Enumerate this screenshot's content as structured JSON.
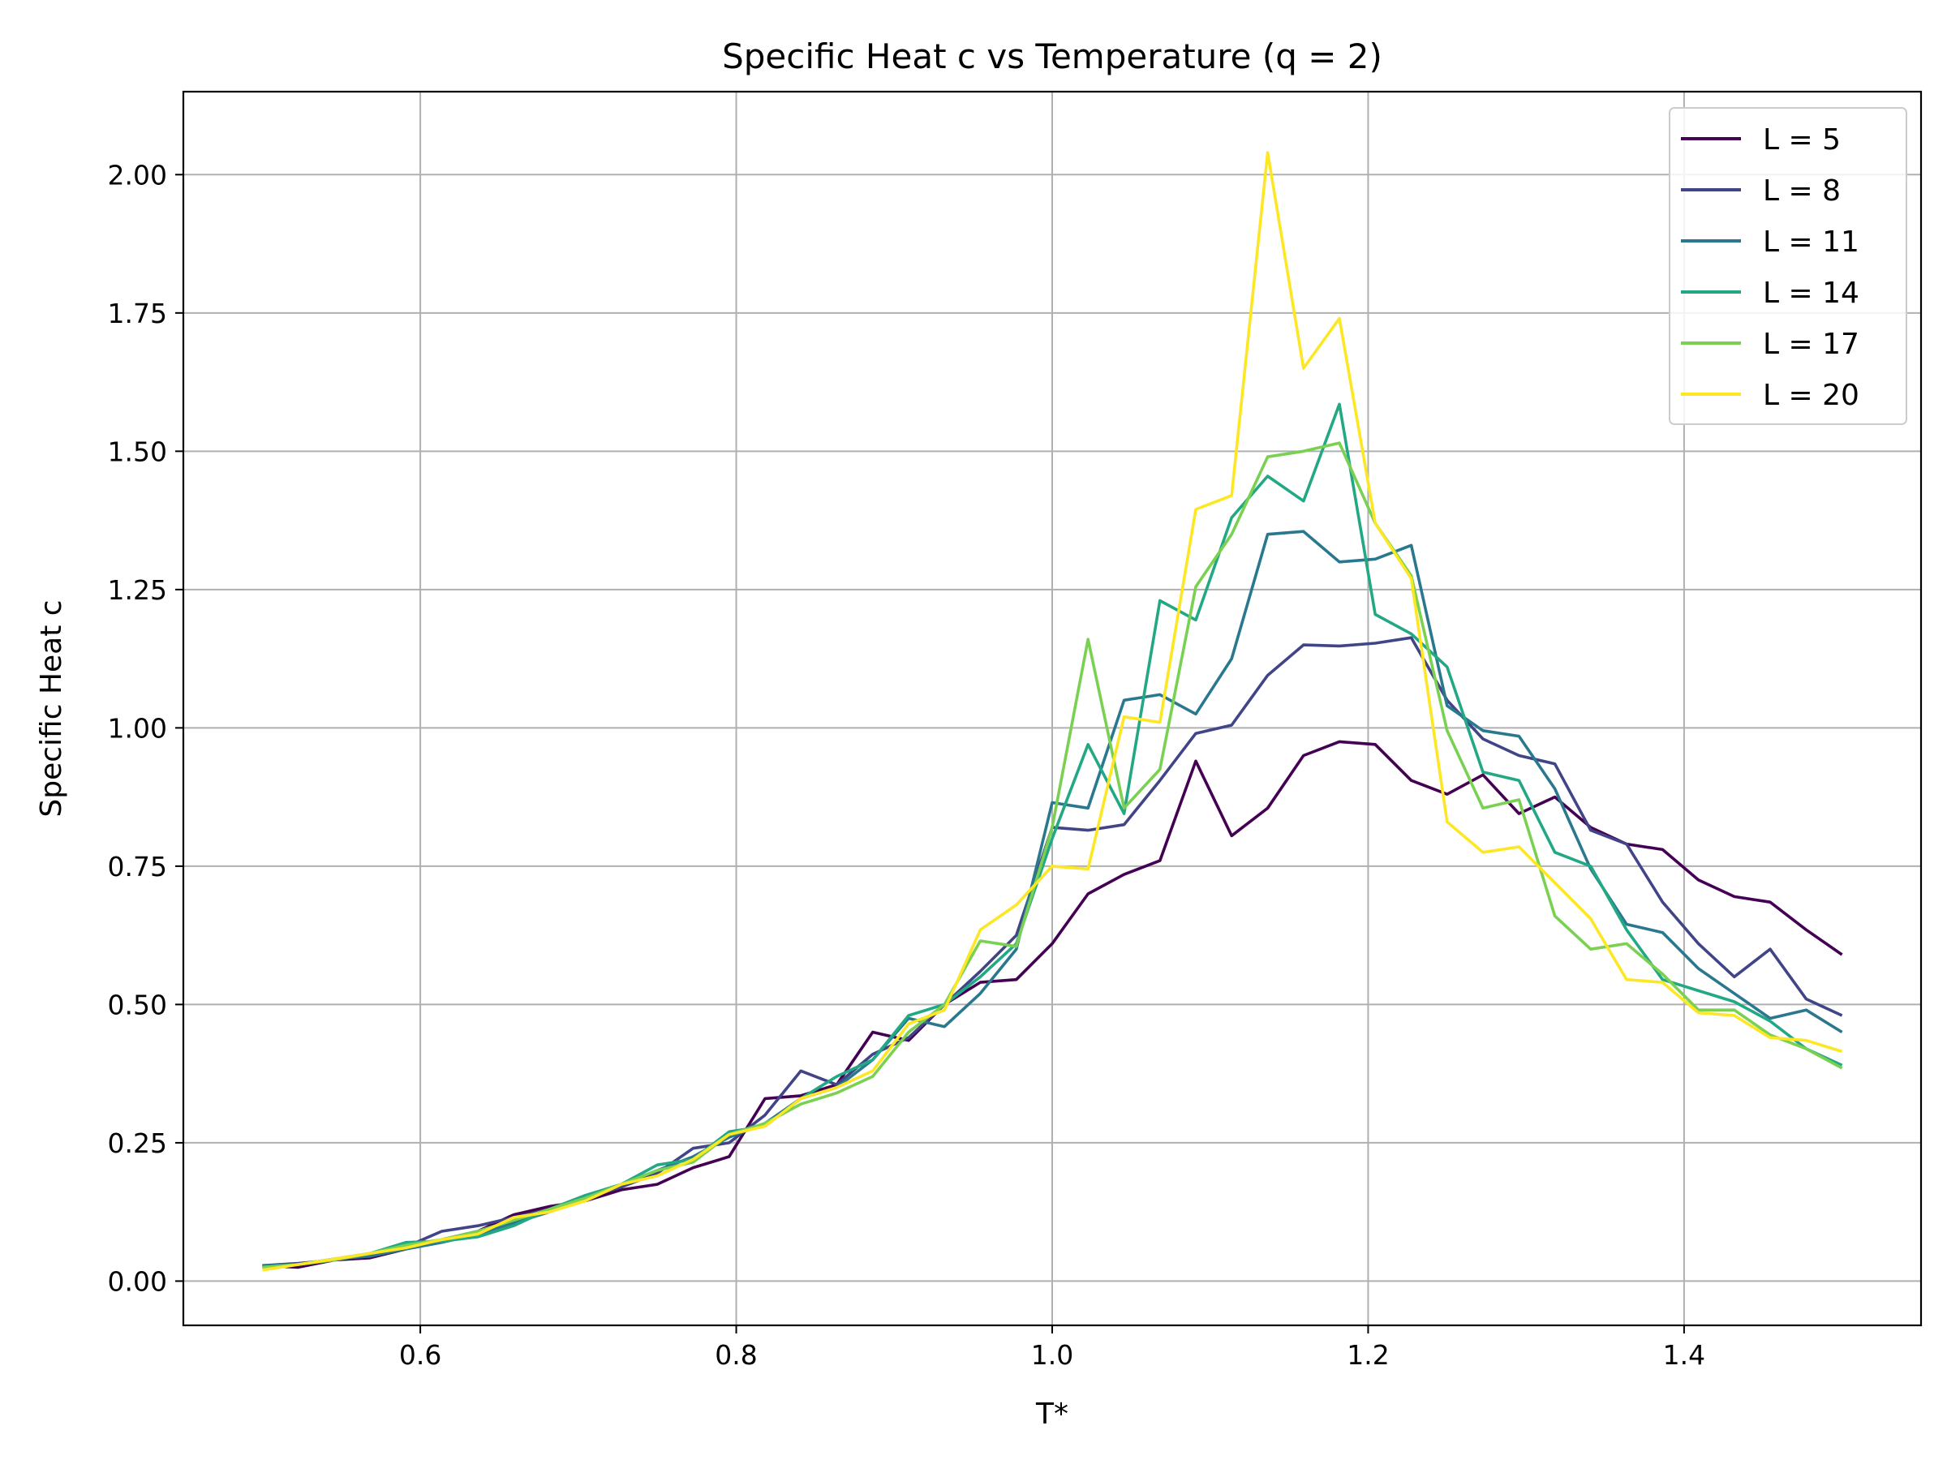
{
  "chart_data": {
    "type": "line",
    "title": "Specific Heat c vs Temperature (q = 2)",
    "xlabel": "T*",
    "ylabel": "Specific Heat c",
    "xlim": [
      0.45,
      1.55
    ],
    "ylim": [
      -0.08,
      2.15
    ],
    "xticks": [
      0.6,
      0.8,
      1.0,
      1.2,
      1.4
    ],
    "xtick_labels": [
      "0.6",
      "0.8",
      "1.0",
      "1.2",
      "1.4"
    ],
    "yticks": [
      0.0,
      0.25,
      0.5,
      0.75,
      1.0,
      1.25,
      1.5,
      1.75,
      2.0
    ],
    "ytick_labels": [
      "0.00",
      "0.25",
      "0.50",
      "0.75",
      "1.00",
      "1.25",
      "1.50",
      "1.75",
      "2.00"
    ],
    "grid": true,
    "legend_position": "top-right",
    "x": [
      0.5,
      0.5227,
      0.5455,
      0.5682,
      0.5909,
      0.6136,
      0.6364,
      0.6591,
      0.6818,
      0.7045,
      0.7273,
      0.75,
      0.7727,
      0.7955,
      0.8182,
      0.8409,
      0.8636,
      0.8864,
      0.9091,
      0.9318,
      0.9545,
      0.9773,
      1.0,
      1.0227,
      1.0455,
      1.0682,
      1.0909,
      1.1136,
      1.1364,
      1.1591,
      1.1818,
      1.2045,
      1.2273,
      1.25,
      1.2727,
      1.2955,
      1.3182,
      1.3409,
      1.3636,
      1.3864,
      1.4091,
      1.4318,
      1.4545,
      1.4773,
      1.5
    ],
    "series": [
      {
        "name": "L = 5",
        "color": "#440154",
        "values": [
          0.028,
          0.025,
          0.038,
          0.042,
          0.058,
          0.075,
          0.09,
          0.12,
          0.135,
          0.145,
          0.165,
          0.175,
          0.205,
          0.225,
          0.33,
          0.335,
          0.355,
          0.45,
          0.435,
          0.5,
          0.54,
          0.545,
          0.61,
          0.7,
          0.735,
          0.76,
          0.94,
          0.805,
          0.855,
          0.95,
          0.975,
          0.97,
          0.905,
          0.88,
          0.915,
          0.845,
          0.875,
          0.82,
          0.79,
          0.78,
          0.725,
          0.695,
          0.685,
          0.635,
          0.59
        ]
      },
      {
        "name": "L = 8",
        "color": "#414487",
        "values": [
          0.028,
          0.032,
          0.038,
          0.048,
          0.062,
          0.09,
          0.1,
          0.115,
          0.13,
          0.15,
          0.17,
          0.195,
          0.24,
          0.25,
          0.3,
          0.38,
          0.355,
          0.41,
          0.44,
          0.5,
          0.56,
          0.625,
          0.82,
          0.815,
          0.825,
          0.905,
          0.99,
          1.005,
          1.095,
          1.15,
          1.148,
          1.153,
          1.163,
          1.05,
          0.98,
          0.95,
          0.935,
          0.815,
          0.79,
          0.685,
          0.61,
          0.55,
          0.6,
          0.51,
          0.48
        ]
      },
      {
        "name": "L = 11",
        "color": "#2a788e",
        "values": [
          0.028,
          0.03,
          0.04,
          0.045,
          0.058,
          0.07,
          0.085,
          0.105,
          0.125,
          0.15,
          0.175,
          0.2,
          0.225,
          0.26,
          0.285,
          0.33,
          0.35,
          0.4,
          0.475,
          0.46,
          0.52,
          0.6,
          0.865,
          0.855,
          1.05,
          1.06,
          1.025,
          1.125,
          1.35,
          1.355,
          1.3,
          1.305,
          1.33,
          1.04,
          0.995,
          0.985,
          0.89,
          0.745,
          0.645,
          0.63,
          0.565,
          0.52,
          0.475,
          0.49,
          0.45
        ]
      },
      {
        "name": "L = 14",
        "color": "#22a884",
        "values": [
          0.025,
          0.03,
          0.04,
          0.05,
          0.07,
          0.072,
          0.08,
          0.1,
          0.13,
          0.155,
          0.175,
          0.21,
          0.22,
          0.27,
          0.28,
          0.33,
          0.37,
          0.4,
          0.48,
          0.5,
          0.55,
          0.61,
          0.8,
          0.97,
          0.845,
          1.23,
          1.195,
          1.38,
          1.455,
          1.41,
          1.585,
          1.205,
          1.17,
          1.11,
          0.92,
          0.905,
          0.775,
          0.75,
          0.635,
          0.545,
          0.525,
          0.505,
          0.47,
          0.42,
          0.39
        ]
      },
      {
        "name": "L = 17",
        "color": "#7ad151",
        "values": [
          0.025,
          0.03,
          0.038,
          0.05,
          0.065,
          0.075,
          0.09,
          0.11,
          0.13,
          0.15,
          0.175,
          0.2,
          0.215,
          0.265,
          0.285,
          0.32,
          0.34,
          0.37,
          0.45,
          0.5,
          0.615,
          0.605,
          0.82,
          1.16,
          0.855,
          0.925,
          1.255,
          1.35,
          1.49,
          1.5,
          1.515,
          1.37,
          1.275,
          0.995,
          0.855,
          0.87,
          0.66,
          0.6,
          0.61,
          0.555,
          0.49,
          0.49,
          0.445,
          0.42,
          0.385
        ]
      },
      {
        "name": "L = 20",
        "color": "#fde725",
        "values": [
          0.02,
          0.03,
          0.04,
          0.05,
          0.06,
          0.075,
          0.085,
          0.115,
          0.125,
          0.145,
          0.175,
          0.19,
          0.22,
          0.265,
          0.28,
          0.33,
          0.35,
          0.38,
          0.465,
          0.49,
          0.635,
          0.68,
          0.75,
          0.745,
          1.02,
          1.01,
          1.395,
          1.42,
          2.04,
          1.65,
          1.74,
          1.37,
          1.27,
          0.83,
          0.775,
          0.785,
          0.72,
          0.655,
          0.545,
          0.54,
          0.485,
          0.48,
          0.44,
          0.435,
          0.415
        ]
      }
    ]
  }
}
